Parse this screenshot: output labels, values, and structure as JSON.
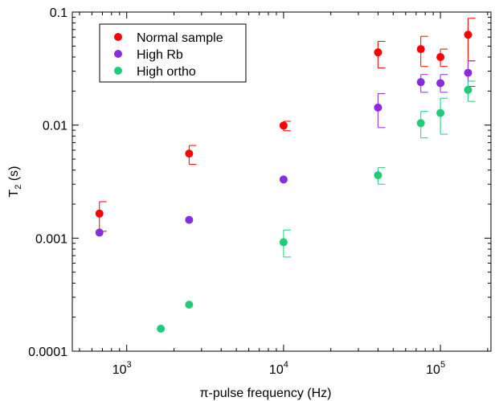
{
  "chart_data": {
    "type": "scatter",
    "xscale": "log",
    "yscale": "log",
    "xlabel": "π-pulse frequency (Hz)",
    "ylabel_main": "T",
    "ylabel_sub": "2",
    "ylabel_unit": " (s)",
    "xlim": [
      450,
      210000
    ],
    "ylim": [
      0.0001,
      0.1
    ],
    "x_ticks": [
      {
        "value": 1000,
        "base": "10",
        "exp": "3"
      },
      {
        "value": 10000,
        "base": "10",
        "exp": "4"
      },
      {
        "value": 100000,
        "base": "10",
        "exp": "5"
      }
    ],
    "y_ticks": [
      {
        "value": 0.0001,
        "label": "0.0001"
      },
      {
        "value": 0.001,
        "label": "0.001"
      },
      {
        "value": 0.01,
        "label": "0.01"
      },
      {
        "value": 0.1,
        "label": "0.1"
      }
    ],
    "grid": false,
    "legend_position": "top-left",
    "series": [
      {
        "name": "Normal sample",
        "color": "#ff0000",
        "points": [
          {
            "x": 670,
            "y": 0.00165,
            "lo": 0.00115,
            "hi": 0.0021
          },
          {
            "x": 2500,
            "y": 0.0056,
            "lo": 0.0045,
            "hi": 0.0066
          },
          {
            "x": 10000,
            "y": 0.0099,
            "lo": 0.0089,
            "hi": 0.0108
          },
          {
            "x": 40000,
            "y": 0.044,
            "lo": 0.032,
            "hi": 0.055
          },
          {
            "x": 75000,
            "y": 0.047,
            "lo": 0.033,
            "hi": 0.061
          },
          {
            "x": 100000,
            "y": 0.04,
            "lo": 0.033,
            "hi": 0.047
          },
          {
            "x": 150000,
            "y": 0.063,
            "lo": 0.037,
            "hi": 0.088
          }
        ]
      },
      {
        "name": "High Rb",
        "color": "#8a2be2",
        "points": [
          {
            "x": 670,
            "y": 0.00112,
            "lo": null,
            "hi": null
          },
          {
            "x": 2500,
            "y": 0.00145,
            "lo": null,
            "hi": null
          },
          {
            "x": 10000,
            "y": 0.0033,
            "lo": null,
            "hi": null
          },
          {
            "x": 40000,
            "y": 0.0143,
            "lo": 0.0095,
            "hi": 0.019
          },
          {
            "x": 75000,
            "y": 0.024,
            "lo": 0.0195,
            "hi": 0.028
          },
          {
            "x": 100000,
            "y": 0.0235,
            "lo": 0.0195,
            "hi": 0.028
          },
          {
            "x": 150000,
            "y": 0.029,
            "lo": 0.022,
            "hi": 0.037
          }
        ]
      },
      {
        "name": "High ortho",
        "color": "#22cc77",
        "points": [
          {
            "x": 1650,
            "y": 0.000158,
            "lo": null,
            "hi": null
          },
          {
            "x": 2500,
            "y": 0.000258,
            "lo": null,
            "hi": null
          },
          {
            "x": 10000,
            "y": 0.00092,
            "lo": 0.00068,
            "hi": 0.00118
          },
          {
            "x": 40000,
            "y": 0.0036,
            "lo": 0.003,
            "hi": 0.0042
          },
          {
            "x": 75000,
            "y": 0.0104,
            "lo": 0.0077,
            "hi": 0.0132
          },
          {
            "x": 100000,
            "y": 0.0128,
            "lo": 0.0083,
            "hi": 0.0173
          },
          {
            "x": 150000,
            "y": 0.0205,
            "lo": 0.0162,
            "hi": 0.0245
          }
        ]
      }
    ]
  }
}
